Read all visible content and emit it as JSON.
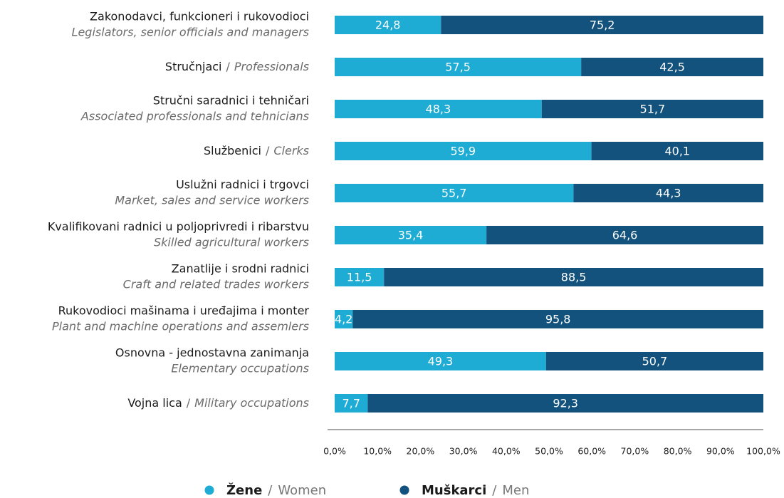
{
  "chart_data": {
    "type": "stacked_bar_horizontal",
    "categories": [
      [
        "Zakonodavci, funkcioneri i rukovodioci",
        "Legislators, senior officials and managers"
      ],
      [
        "Stručnjaci",
        "/",
        "Professionals"
      ],
      [
        "Stručni saradnici i tehničari",
        "Associated professionals and tehnicians"
      ],
      [
        "Službenici",
        "/",
        "Clerks"
      ],
      [
        "Uslužni radnici i trgovci",
        "Market, sales and service workers"
      ],
      [
        "Kvalifikovani radnici u poljoprivredi i ribarstvu",
        "Skilled agricultural workers"
      ],
      [
        "Zanatlije i srodni radnici",
        "Craft and related trades workers"
      ],
      [
        "Rukovodioci mašinama i uređajima i monter",
        "Plant and machine operations and assemlers"
      ],
      [
        "Osnovna - jednostavna zanimanja",
        "Elementary occupations"
      ],
      [
        "Vojna lica",
        "/",
        "Military occupations"
      ]
    ],
    "series": [
      {
        "name": "Žene",
        "name_en": "Women",
        "color": "#1eacd4",
        "values": [
          24.8,
          57.5,
          48.3,
          59.9,
          55.7,
          35.4,
          11.5,
          4.2,
          49.3,
          7.7
        ],
        "value_labels": [
          "24,8",
          "57,5",
          "48,3",
          "59,9",
          "55,7",
          "35,4",
          "11,5",
          "4,2",
          "49,3",
          "7,7"
        ]
      },
      {
        "name": "Muškarci",
        "name_en": "Men",
        "color": "#13527d",
        "values": [
          75.2,
          42.5,
          51.7,
          40.1,
          44.3,
          64.6,
          88.5,
          95.8,
          50.7,
          92.3
        ],
        "value_labels": [
          "75,2",
          "42,5",
          "51,7",
          "40,1",
          "44,3",
          "64,6",
          "88,5",
          "95,8",
          "50,7",
          "92,3"
        ]
      }
    ],
    "legend_separator": "/",
    "xlim": [
      0,
      100
    ],
    "xticks": [
      {
        "value": 0,
        "label": "0,0%"
      },
      {
        "value": 10,
        "label": "10,0%"
      },
      {
        "value": 20,
        "label": "20,0%"
      },
      {
        "value": 30,
        "label": "30,0%"
      },
      {
        "value": 40,
        "label": "40,0%"
      },
      {
        "value": 50,
        "label": "50,0%"
      },
      {
        "value": 60,
        "label": "60,0%"
      },
      {
        "value": 70,
        "label": "70,0%"
      },
      {
        "value": 80,
        "label": "80,0%"
      },
      {
        "value": 90,
        "label": "90,0%"
      },
      {
        "value": 100,
        "label": "100,0%"
      }
    ],
    "legend": "bottom"
  }
}
